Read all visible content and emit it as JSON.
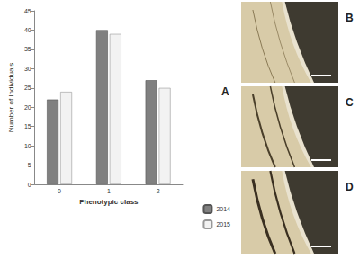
{
  "chart_data": {
    "type": "bar",
    "categories": [
      "0",
      "1",
      "2"
    ],
    "series": [
      {
        "name": "2014",
        "color": "#808080",
        "values": [
          22,
          40,
          27
        ]
      },
      {
        "name": "2015",
        "color": "#f2f2f2",
        "values": [
          24,
          39,
          25
        ]
      }
    ],
    "x_label": "Phenotypic class",
    "y_label": "Number of Individuals",
    "ylim": [
      0,
      45
    ],
    "yticks": [
      0,
      5,
      10,
      15,
      20,
      25,
      30,
      35,
      40,
      45
    ],
    "grid": false,
    "legend": "right",
    "annotations": [
      "A"
    ]
  },
  "panels": [
    {
      "label": "B"
    },
    {
      "label": "C"
    },
    {
      "label": "D"
    }
  ]
}
